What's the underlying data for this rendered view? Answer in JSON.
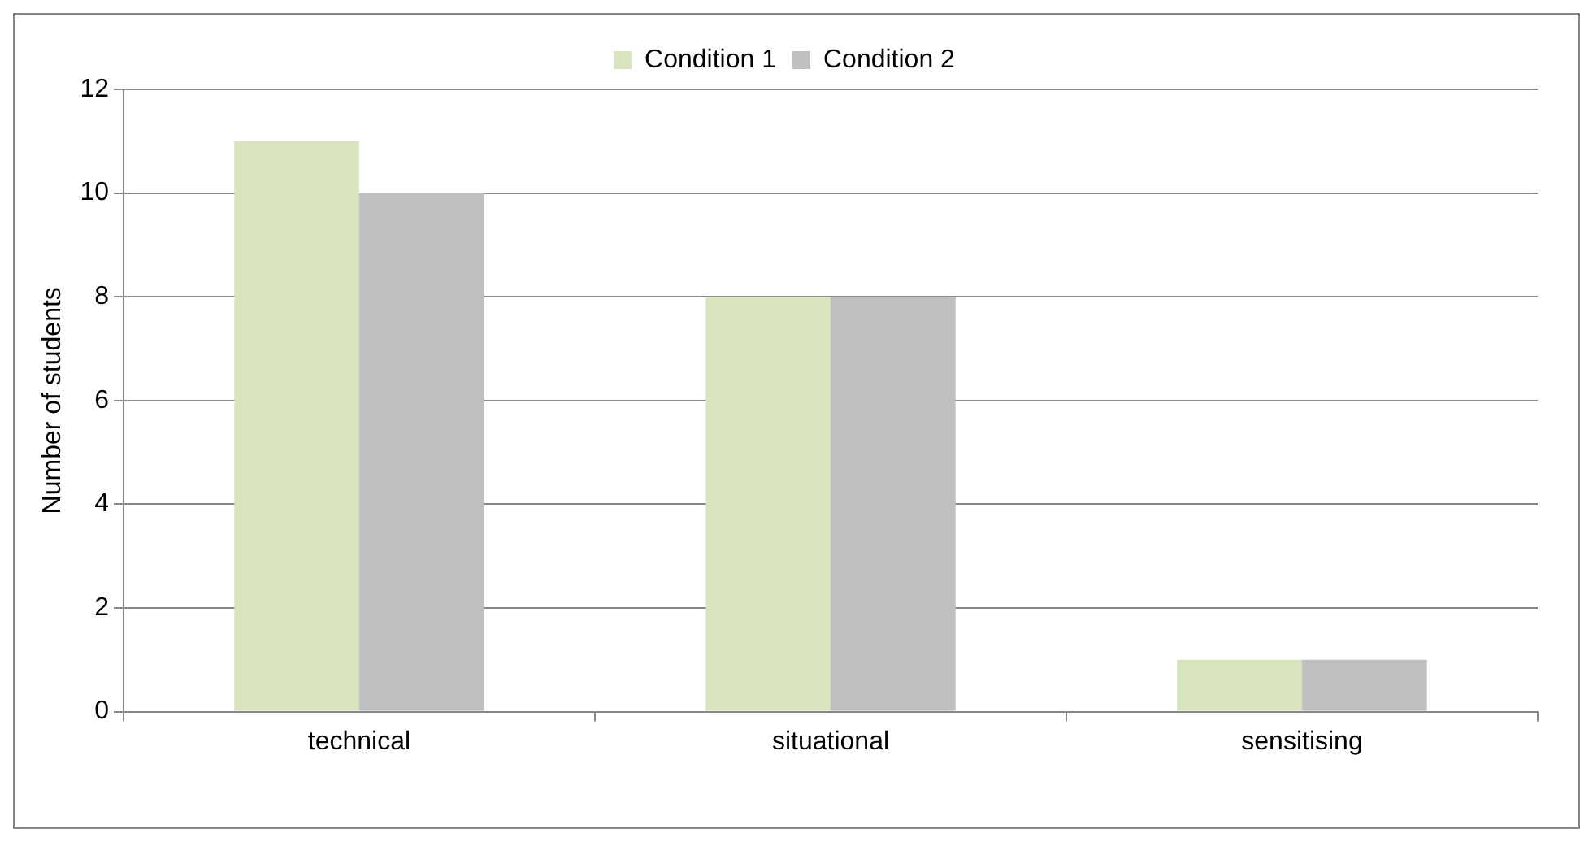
{
  "chart_data": {
    "type": "bar",
    "ylabel": "Number of students",
    "categories": [
      "technical",
      "situational",
      "sensitising"
    ],
    "series": [
      {
        "name": "Condition 1",
        "color": "#d7e4bd",
        "values": [
          11,
          8,
          1
        ]
      },
      {
        "name": "Condition 2",
        "color": "#bfbfbf",
        "values": [
          10,
          8,
          1
        ]
      }
    ],
    "ylim": [
      0,
      12
    ],
    "yticks": [
      0,
      2,
      4,
      6,
      8,
      10,
      12
    ],
    "grid": "y",
    "legend": "top"
  }
}
